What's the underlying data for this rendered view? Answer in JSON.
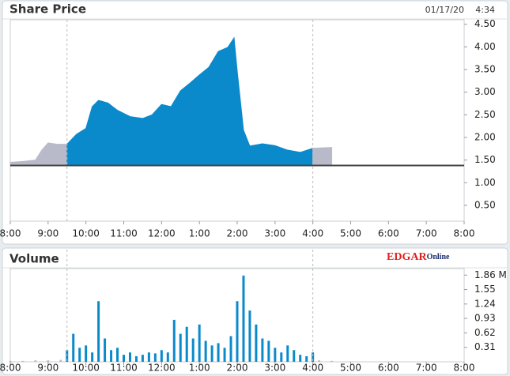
{
  "chart_data": [
    {
      "type": "area",
      "title": "Share Price",
      "date": "01/17/20",
      "time": "4:34",
      "xlim": [
        480,
        1200
      ],
      "xticks": [
        {
          "value": 480,
          "label": "8:00"
        },
        {
          "value": 540,
          "label": "9:00"
        },
        {
          "value": 600,
          "label": "10:00"
        },
        {
          "value": 660,
          "label": "11:00"
        },
        {
          "value": 720,
          "label": "12:00"
        },
        {
          "value": 780,
          "label": "1:00"
        },
        {
          "value": 840,
          "label": "2:00"
        },
        {
          "value": 900,
          "label": "3:00"
        },
        {
          "value": 960,
          "label": "4:00"
        },
        {
          "value": 1020,
          "label": "5:00"
        },
        {
          "value": 1080,
          "label": "6:00"
        },
        {
          "value": 1140,
          "label": "7:00"
        },
        {
          "value": 1200,
          "label": "8:00"
        }
      ],
      "ylim": [
        0.15,
        4.6
      ],
      "yticks": [
        {
          "value": 4.5,
          "label": "4.50"
        },
        {
          "value": 4,
          "label": "4.00"
        },
        {
          "value": 3.5,
          "label": "3.50"
        },
        {
          "value": 3,
          "label": "3.00"
        },
        {
          "value": 2.5,
          "label": "2.50"
        },
        {
          "value": 2,
          "label": "2.00"
        },
        {
          "value": 1.5,
          "label": "1.50"
        },
        {
          "value": 1,
          "label": "1.00"
        },
        {
          "value": 0.5,
          "label": "0.50"
        }
      ],
      "reference_line": 1.38,
      "session_lines": [
        570,
        960
      ],
      "series": [
        {
          "color": "#b9bac9",
          "x": [
            480,
            500,
            520,
            530,
            540,
            555,
            570
          ],
          "values": [
            1.45,
            1.47,
            1.5,
            1.72,
            1.88,
            1.85,
            1.85
          ]
        },
        {
          "color": "#0b8acb",
          "x": [
            570,
            585,
            600,
            610,
            620,
            635,
            650,
            670,
            690,
            705,
            720,
            735,
            750,
            765,
            780,
            795,
            810,
            825,
            835,
            840,
            850,
            860,
            880,
            900,
            920,
            940,
            960
          ],
          "values": [
            1.85,
            2.07,
            2.2,
            2.68,
            2.82,
            2.76,
            2.6,
            2.46,
            2.42,
            2.5,
            2.73,
            2.68,
            3.03,
            3.2,
            3.38,
            3.55,
            3.9,
            3.99,
            4.2,
            3.47,
            2.16,
            1.81,
            1.86,
            1.82,
            1.72,
            1.67,
            1.76
          ]
        },
        {
          "color": "#b9bac9",
          "x": [
            960,
            975,
            990
          ],
          "values": [
            1.76,
            1.77,
            1.78
          ]
        }
      ]
    },
    {
      "type": "bar",
      "title": "Volume",
      "logo": {
        "main": "EDGAR",
        "sub": "Online"
      },
      "xlim": [
        480,
        1200
      ],
      "xticks": [
        {
          "value": 480,
          "label": "8:00"
        },
        {
          "value": 540,
          "label": "9:00"
        },
        {
          "value": 600,
          "label": "10:00"
        },
        {
          "value": 660,
          "label": "11:00"
        },
        {
          "value": 720,
          "label": "12:00"
        },
        {
          "value": 780,
          "label": "1:00"
        },
        {
          "value": 840,
          "label": "2:00"
        },
        {
          "value": 900,
          "label": "3:00"
        },
        {
          "value": 960,
          "label": "4:00"
        },
        {
          "value": 1020,
          "label": "5:00"
        },
        {
          "value": 1080,
          "label": "6:00"
        },
        {
          "value": 1140,
          "label": "7:00"
        },
        {
          "value": 1200,
          "label": "8:00"
        }
      ],
      "ylim": [
        0,
        2.0
      ],
      "yticks": [
        {
          "value": 1.86,
          "label": "1.86 M"
        },
        1.55,
        1.24,
        0.93,
        0.62,
        0.31
      ],
      "session_lines": [
        570,
        960
      ],
      "series": [
        {
          "color": "#b9bac9",
          "x": [
            480,
            500,
            520,
            540,
            560,
            970,
            990
          ],
          "values": [
            0.02,
            0.02,
            0.03,
            0.03,
            0.04,
            0.03,
            0.02
          ]
        },
        {
          "color": "#0b8acb",
          "x": [
            570,
            580,
            590,
            600,
            610,
            620,
            630,
            640,
            650,
            660,
            670,
            680,
            690,
            700,
            710,
            720,
            730,
            740,
            750,
            760,
            770,
            780,
            790,
            800,
            810,
            820,
            830,
            840,
            850,
            860,
            870,
            880,
            890,
            900,
            910,
            920,
            930,
            940,
            950,
            960
          ],
          "values": [
            0.25,
            0.6,
            0.3,
            0.35,
            0.2,
            1.3,
            0.5,
            0.25,
            0.3,
            0.15,
            0.2,
            0.12,
            0.15,
            0.2,
            0.18,
            0.25,
            0.2,
            0.9,
            0.6,
            0.75,
            0.5,
            0.8,
            0.45,
            0.35,
            0.4,
            0.3,
            0.55,
            1.3,
            1.85,
            1.1,
            0.8,
            0.5,
            0.45,
            0.3,
            0.2,
            0.35,
            0.25,
            0.15,
            0.12,
            0.2
          ]
        }
      ]
    }
  ]
}
